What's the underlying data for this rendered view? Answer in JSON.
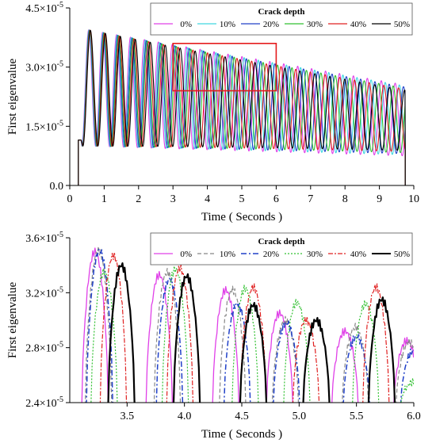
{
  "chart_data": [
    {
      "type": "line",
      "xlabel": "Time ( Seconds )",
      "ylabel": "First eigenvalue",
      "xlim": [
        0,
        10
      ],
      "ylim": [
        0,
        4.5e-05
      ],
      "xticks": [
        {
          "v": 0,
          "label": "0"
        },
        {
          "v": 1,
          "label": "1"
        },
        {
          "v": 2,
          "label": "2"
        },
        {
          "v": 3,
          "label": "3"
        },
        {
          "v": 4,
          "label": "4"
        },
        {
          "v": 5,
          "label": "5"
        },
        {
          "v": 6,
          "label": "6"
        },
        {
          "v": 7,
          "label": "7"
        },
        {
          "v": 8,
          "label": "8"
        },
        {
          "v": 9,
          "label": "9"
        },
        {
          "v": 10,
          "label": "10"
        }
      ],
      "yticks": [
        {
          "v": 0,
          "label": "0.0",
          "exp": ""
        },
        {
          "v": 1.5e-05,
          "label": "1.5×10",
          "exp": "-5"
        },
        {
          "v": 3e-05,
          "label": "3.0×10",
          "exp": "-5"
        },
        {
          "v": 4.5e-05,
          "label": "4.5×10",
          "exp": "-5"
        }
      ],
      "legend": {
        "title": "Crack depth",
        "placement": "top-right",
        "columns": 6
      },
      "highlight_box": {
        "x0": 3.0,
        "x1": 6.0,
        "y0": 2.4e-05,
        "y1": 3.6e-05,
        "color": "#e41a1c"
      },
      "wave": {
        "t_start": 0.25,
        "t_end": 9.75,
        "initial_value": 1.15e-05,
        "end_value": 9e-06,
        "peak_start": 3.95e-05,
        "peak_end": 2.55e-05,
        "trough_start": 1e-05,
        "trough_end": 7.5e-06
      },
      "series": [
        {
          "name": "0%",
          "color": "#e040e8",
          "period": 0.405,
          "first_peak": 0.55,
          "dash": ""
        },
        {
          "name": "10%",
          "color": "#40d8e0",
          "period": 0.41,
          "first_peak": 0.56,
          "dash": ""
        },
        {
          "name": "20%",
          "color": "#2040c8",
          "period": 0.415,
          "first_peak": 0.57,
          "dash": ""
        },
        {
          "name": "30%",
          "color": "#30c030",
          "period": 0.42,
          "first_peak": 0.58,
          "dash": ""
        },
        {
          "name": "40%",
          "color": "#e02020",
          "period": 0.427,
          "first_peak": 0.59,
          "dash": ""
        },
        {
          "name": "50%",
          "color": "#000000",
          "period": 0.435,
          "first_peak": 0.6,
          "dash": ""
        }
      ]
    },
    {
      "type": "line",
      "xlabel": "Time ( Seconds )",
      "ylabel": "First eigenvalue",
      "xlim": [
        3.0,
        6.0
      ],
      "ylim": [
        2.4e-05,
        3.6e-05
      ],
      "xticks": [
        {
          "v": 3.5,
          "label": "3.5"
        },
        {
          "v": 4.0,
          "label": "4.0"
        },
        {
          "v": 4.5,
          "label": "4.5"
        },
        {
          "v": 5.0,
          "label": "5.0"
        },
        {
          "v": 5.5,
          "label": "5.5"
        },
        {
          "v": 6.0,
          "label": "6.0"
        }
      ],
      "yticks": [
        {
          "v": 2.4e-05,
          "label": "2.4×10",
          "exp": "-5"
        },
        {
          "v": 2.8e-05,
          "label": "2.8×10",
          "exp": "-5"
        },
        {
          "v": 3.2e-05,
          "label": "3.2×10",
          "exp": "-5"
        },
        {
          "v": 3.6e-05,
          "label": "3.6×10",
          "exp": "-5"
        }
      ],
      "legend": {
        "title": "Crack depth",
        "placement": "top-right",
        "columns": 6
      },
      "series": [
        {
          "name": "0%",
          "color": "#e040e8",
          "dash": "",
          "width": 1.3,
          "peaks": [
            [
              3.22,
              3.5e-05
            ],
            [
              3.78,
              3.33e-05
            ],
            [
              4.36,
              3.22e-05
            ],
            [
              4.83,
              3.05e-05
            ],
            [
              5.4,
              2.92e-05
            ],
            [
              5.94,
              2.85e-05
            ]
          ]
        },
        {
          "name": "10%",
          "color": "#888888",
          "dash": "5,3",
          "width": 1.2,
          "peaks": [
            [
              3.25,
              3.51e-05
            ],
            [
              3.85,
              3.35e-05
            ],
            [
              4.42,
              3.22e-05
            ],
            [
              4.88,
              3e-05
            ],
            [
              5.49,
              2.95e-05
            ],
            [
              5.96,
              2.84e-05
            ]
          ]
        },
        {
          "name": "20%",
          "color": "#2040c8",
          "dash": "7,3,2,3",
          "width": 1.5,
          "peaks": [
            [
              3.26,
              3.51e-05
            ],
            [
              3.87,
              3.3e-05
            ],
            [
              4.46,
              3.12e-05
            ],
            [
              4.89,
              2.98e-05
            ],
            [
              5.5,
              2.88e-05
            ],
            [
              6.0,
              2.78e-05
            ]
          ]
        },
        {
          "name": "30%",
          "color": "#30c030",
          "dash": "2,2",
          "width": 1.2,
          "peaks": [
            [
              3.3,
              3.35e-05
            ],
            [
              3.92,
              3.37e-05
            ],
            [
              4.53,
              3.23e-05
            ],
            [
              4.98,
              3.13e-05
            ],
            [
              5.58,
              3.12e-05
            ],
            [
              6.0,
              2.55e-05
            ]
          ]
        },
        {
          "name": "40%",
          "color": "#e02020",
          "dash": "6,2,2,2",
          "width": 1.2,
          "peaks": [
            [
              3.38,
              3.47e-05
            ],
            [
              3.96,
              3.38e-05
            ],
            [
              4.6,
              3.24e-05
            ],
            [
              5.06,
              3e-05
            ],
            [
              5.67,
              3.24e-05
            ]
          ]
        },
        {
          "name": "50%",
          "color": "#000000",
          "dash": "",
          "width": 2.2,
          "peaks": [
            [
              3.45,
              3.4e-05
            ],
            [
              4.02,
              3.32e-05
            ],
            [
              4.6,
              3.11e-05
            ],
            [
              5.15,
              3e-05
            ],
            [
              5.72,
              3.15e-05
            ]
          ]
        }
      ]
    }
  ]
}
